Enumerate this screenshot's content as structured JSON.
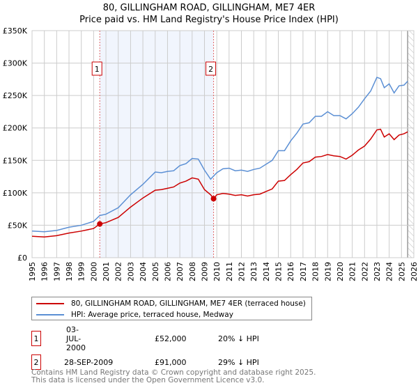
{
  "chart_data": {
    "type": "line",
    "title": "80, GILLINGHAM ROAD, GILLINGHAM, ME7 4ER",
    "subtitle": "Price paid vs. HM Land Registry's House Price Index (HPI)",
    "xlim": [
      1995,
      2026
    ],
    "ylim": [
      0,
      350000
    ],
    "yticks": [
      0,
      50000,
      100000,
      150000,
      200000,
      250000,
      300000,
      350000
    ],
    "ytick_labels": [
      "£0",
      "£50K",
      "£100K",
      "£150K",
      "£200K",
      "£250K",
      "£300K",
      "£350K"
    ],
    "xticks": [
      "1995",
      "1996",
      "1997",
      "1998",
      "1999",
      "2000",
      "2001",
      "2002",
      "2003",
      "2004",
      "2005",
      "2006",
      "2007",
      "2008",
      "2009",
      "2010",
      "2011",
      "2012",
      "2013",
      "2014",
      "2015",
      "2016",
      "2017",
      "2018",
      "2019",
      "2020",
      "2021",
      "2022",
      "2023",
      "2024",
      "2025",
      "2026"
    ],
    "grid": true,
    "shaded_range": [
      2000.5,
      2009.74
    ],
    "forecast_hatch_from": 2025.5,
    "series": [
      {
        "name": "80, GILLINGHAM ROAD, GILLINGHAM, ME7 4ER (terraced house)",
        "color": "#cc0000",
        "x": [
          1995,
          1996,
          1997,
          1998,
          1999,
          2000,
          2000.5,
          2001,
          2002,
          2003,
          2004,
          2005,
          2005.5,
          2006,
          2006.5,
          2007,
          2007.5,
          2008,
          2008.5,
          2009,
          2009.5,
          2009.74,
          2010,
          2010.5,
          2011,
          2011.5,
          2012,
          2012.5,
          2013,
          2013.5,
          2014,
          2014.5,
          2015,
          2015.5,
          2016,
          2016.5,
          2017,
          2017.5,
          2018,
          2018.5,
          2019,
          2019.5,
          2020,
          2020.5,
          2021,
          2021.5,
          2022,
          2022.5,
          2023,
          2023.3,
          2023.6,
          2024,
          2024.4,
          2024.8,
          2025.2,
          2025.5
        ],
        "y": [
          33000,
          32000,
          34000,
          38000,
          41000,
          45000,
          52000,
          54000,
          62000,
          78000,
          92000,
          104000,
          105000,
          107000,
          109000,
          115000,
          118000,
          123000,
          121000,
          105000,
          97000,
          91000,
          97000,
          99000,
          98000,
          96000,
          97000,
          95000,
          97000,
          98000,
          102000,
          106000,
          118000,
          119000,
          128000,
          136000,
          146000,
          148000,
          155000,
          156000,
          159000,
          157000,
          156000,
          152000,
          158000,
          166000,
          172000,
          183000,
          197000,
          198000,
          186000,
          191000,
          182000,
          189000,
          191000,
          194000
        ]
      },
      {
        "name": "HPI: Average price, terraced house, Medway",
        "color": "#5b8fd4",
        "x": [
          1995,
          1996,
          1997,
          1998,
          1999,
          2000,
          2000.5,
          2001,
          2002,
          2003,
          2004,
          2005,
          2005.5,
          2006,
          2006.5,
          2007,
          2007.5,
          2008,
          2008.5,
          2009,
          2009.5,
          2010,
          2010.5,
          2011,
          2011.5,
          2012,
          2012.5,
          2013,
          2013.5,
          2014,
          2014.5,
          2015,
          2015.5,
          2016,
          2016.5,
          2017,
          2017.5,
          2018,
          2018.5,
          2019,
          2019.5,
          2020,
          2020.5,
          2021,
          2021.5,
          2022,
          2022.5,
          2023,
          2023.3,
          2023.6,
          2024,
          2024.4,
          2024.8,
          2025.2,
          2025.5
        ],
        "y": [
          41000,
          40000,
          42000,
          47000,
          50000,
          56000,
          65000,
          67000,
          77000,
          97000,
          113000,
          132000,
          131000,
          133000,
          134000,
          142000,
          145000,
          153000,
          152000,
          135000,
          121000,
          131000,
          137000,
          138000,
          134000,
          135000,
          133000,
          136000,
          138000,
          144000,
          150000,
          165000,
          165000,
          180000,
          192000,
          206000,
          208000,
          218000,
          218000,
          225000,
          219000,
          219000,
          214000,
          222000,
          232000,
          245000,
          257000,
          278000,
          276000,
          262000,
          268000,
          254000,
          265000,
          266000,
          272000
        ]
      }
    ],
    "markers": [
      {
        "label": "1",
        "x": 2000.5,
        "y": 52000
      },
      {
        "label": "2",
        "x": 2009.74,
        "y": 91000
      }
    ]
  },
  "legend": {
    "red": "80, GILLINGHAM ROAD, GILLINGHAM, ME7 4ER (terraced house)",
    "blue": "HPI: Average price, terraced house, Medway"
  },
  "transactions": [
    {
      "num": "1",
      "date": "03-JUL-2000",
      "price": "£52,000",
      "diff": "20% ↓ HPI"
    },
    {
      "num": "2",
      "date": "28-SEP-2009",
      "price": "£91,000",
      "diff": "29% ↓ HPI"
    }
  ],
  "footer": {
    "line1": "Contains HM Land Registry data © Crown copyright and database right 2025.",
    "line2": "This data is licensed under the Open Government Licence v3.0."
  }
}
